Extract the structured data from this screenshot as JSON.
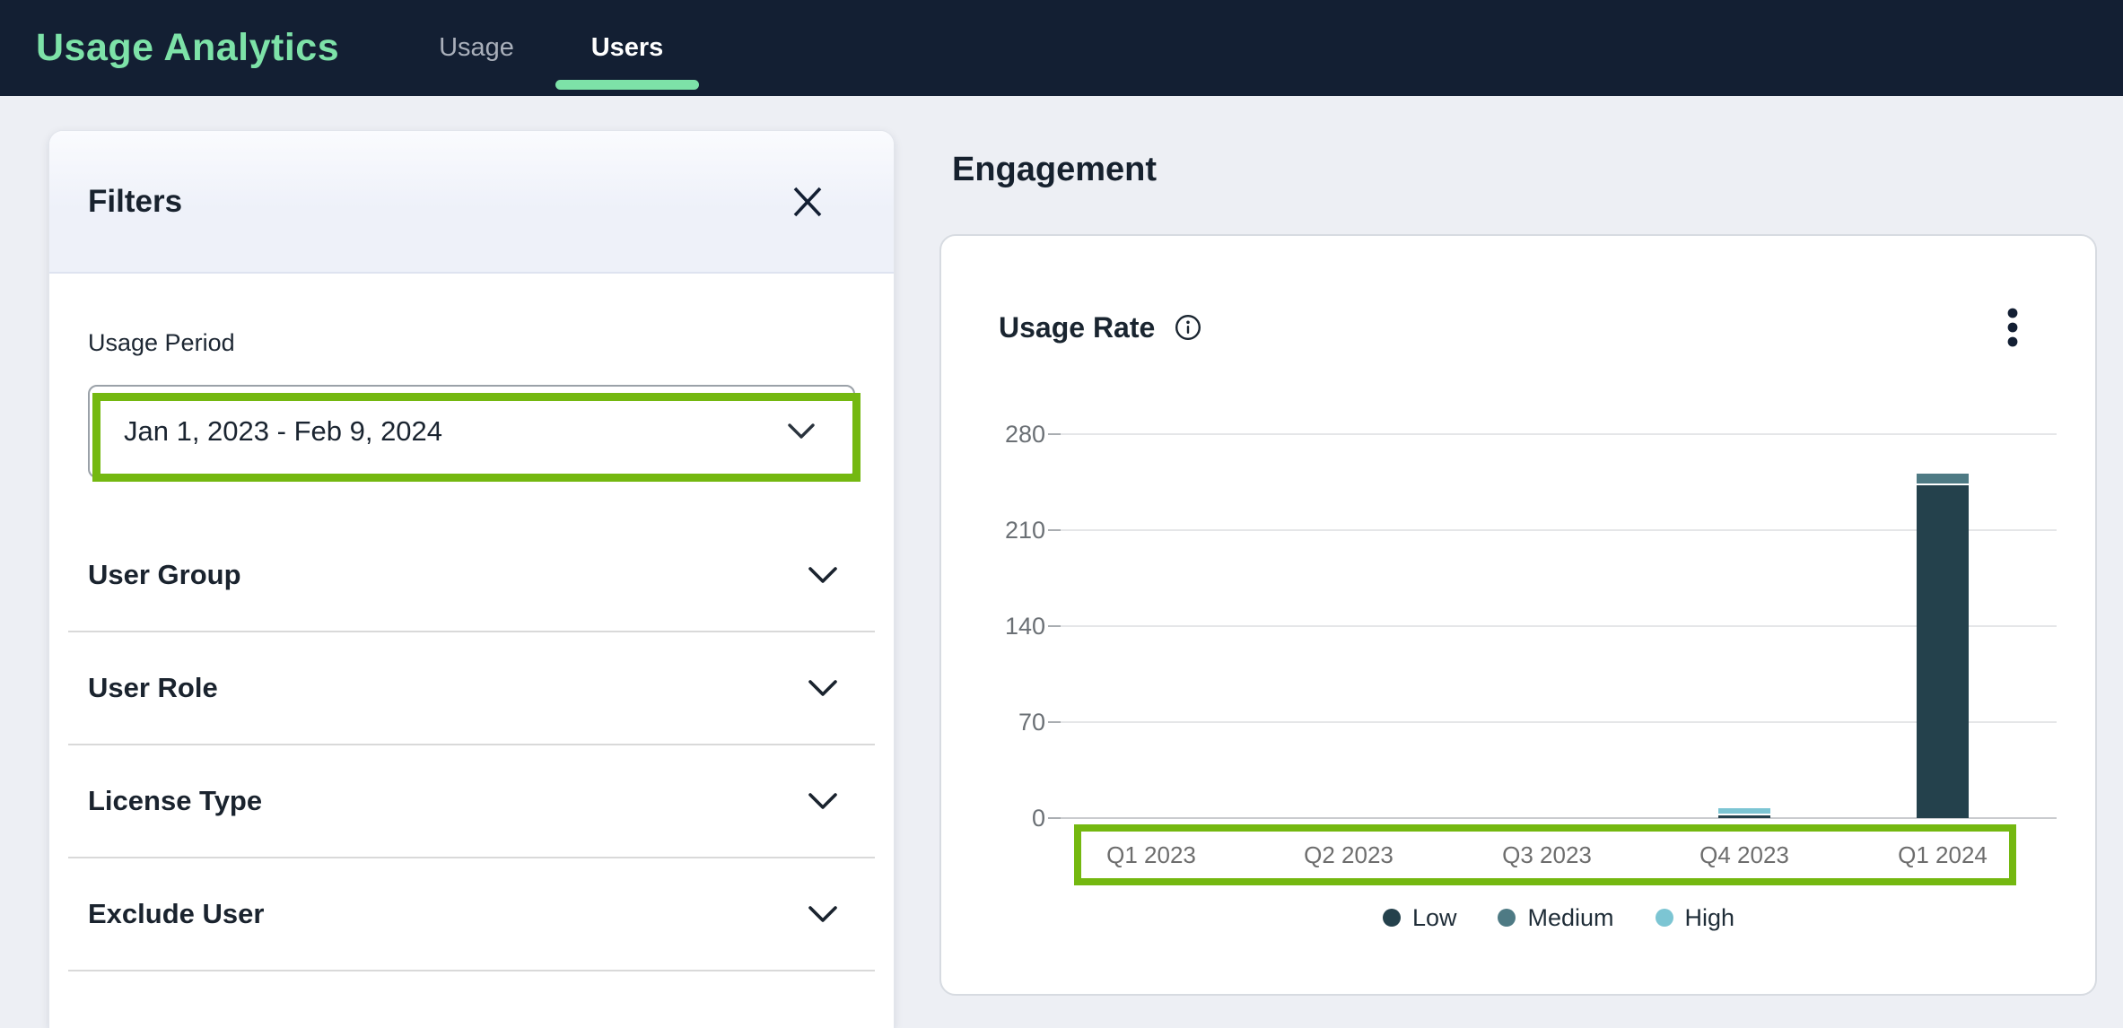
{
  "topbar": {
    "title": "Usage Analytics",
    "tabs": [
      {
        "label": "Usage",
        "active": false
      },
      {
        "label": "Users",
        "active": true
      }
    ]
  },
  "filters": {
    "title": "Filters",
    "usage_period": {
      "label": "Usage Period",
      "value": "Jan 1, 2023 - Feb 9, 2024"
    },
    "sections": [
      {
        "label": "User Group"
      },
      {
        "label": "User Role"
      },
      {
        "label": "License Type"
      },
      {
        "label": "Exclude User"
      }
    ]
  },
  "main": {
    "heading": "Engagement",
    "card": {
      "title": "Usage Rate"
    }
  },
  "chart_data": {
    "type": "bar",
    "stacked": true,
    "title": "Usage Rate",
    "categories": [
      "Q1 2023",
      "Q2 2023",
      "Q3 2023",
      "Q4 2023",
      "Q1 2024"
    ],
    "series": [
      {
        "name": "Low",
        "color": "#24414C",
        "values": [
          0,
          0,
          0,
          2,
          243
        ]
      },
      {
        "name": "Medium",
        "color": "#4E7A84",
        "values": [
          0,
          0,
          0,
          0,
          7
        ]
      },
      {
        "name": "High",
        "color": "#7CC5D3",
        "values": [
          0,
          0,
          0,
          4,
          0
        ]
      }
    ],
    "ylim": [
      0,
      280
    ],
    "yticks": [
      0,
      70,
      140,
      210,
      280
    ],
    "grid": true,
    "legend_position": "bottom"
  },
  "icons": {
    "close": "✕",
    "chevron_down": "⌄",
    "info": "ⓘ",
    "kebab": "⋮",
    "legend_dot": "●"
  },
  "colors": {
    "topbar_bg": "#131F33",
    "accent_mint": "#7DE2A8",
    "annotation_green": "#74B810",
    "axis_gray": "#6B7075",
    "page_bg": "#EDEFF4"
  },
  "annotations": {
    "highlight_color": "#74B810",
    "highlighted_elements": [
      "usage-period-select",
      "chart-x-axis-labels"
    ]
  }
}
